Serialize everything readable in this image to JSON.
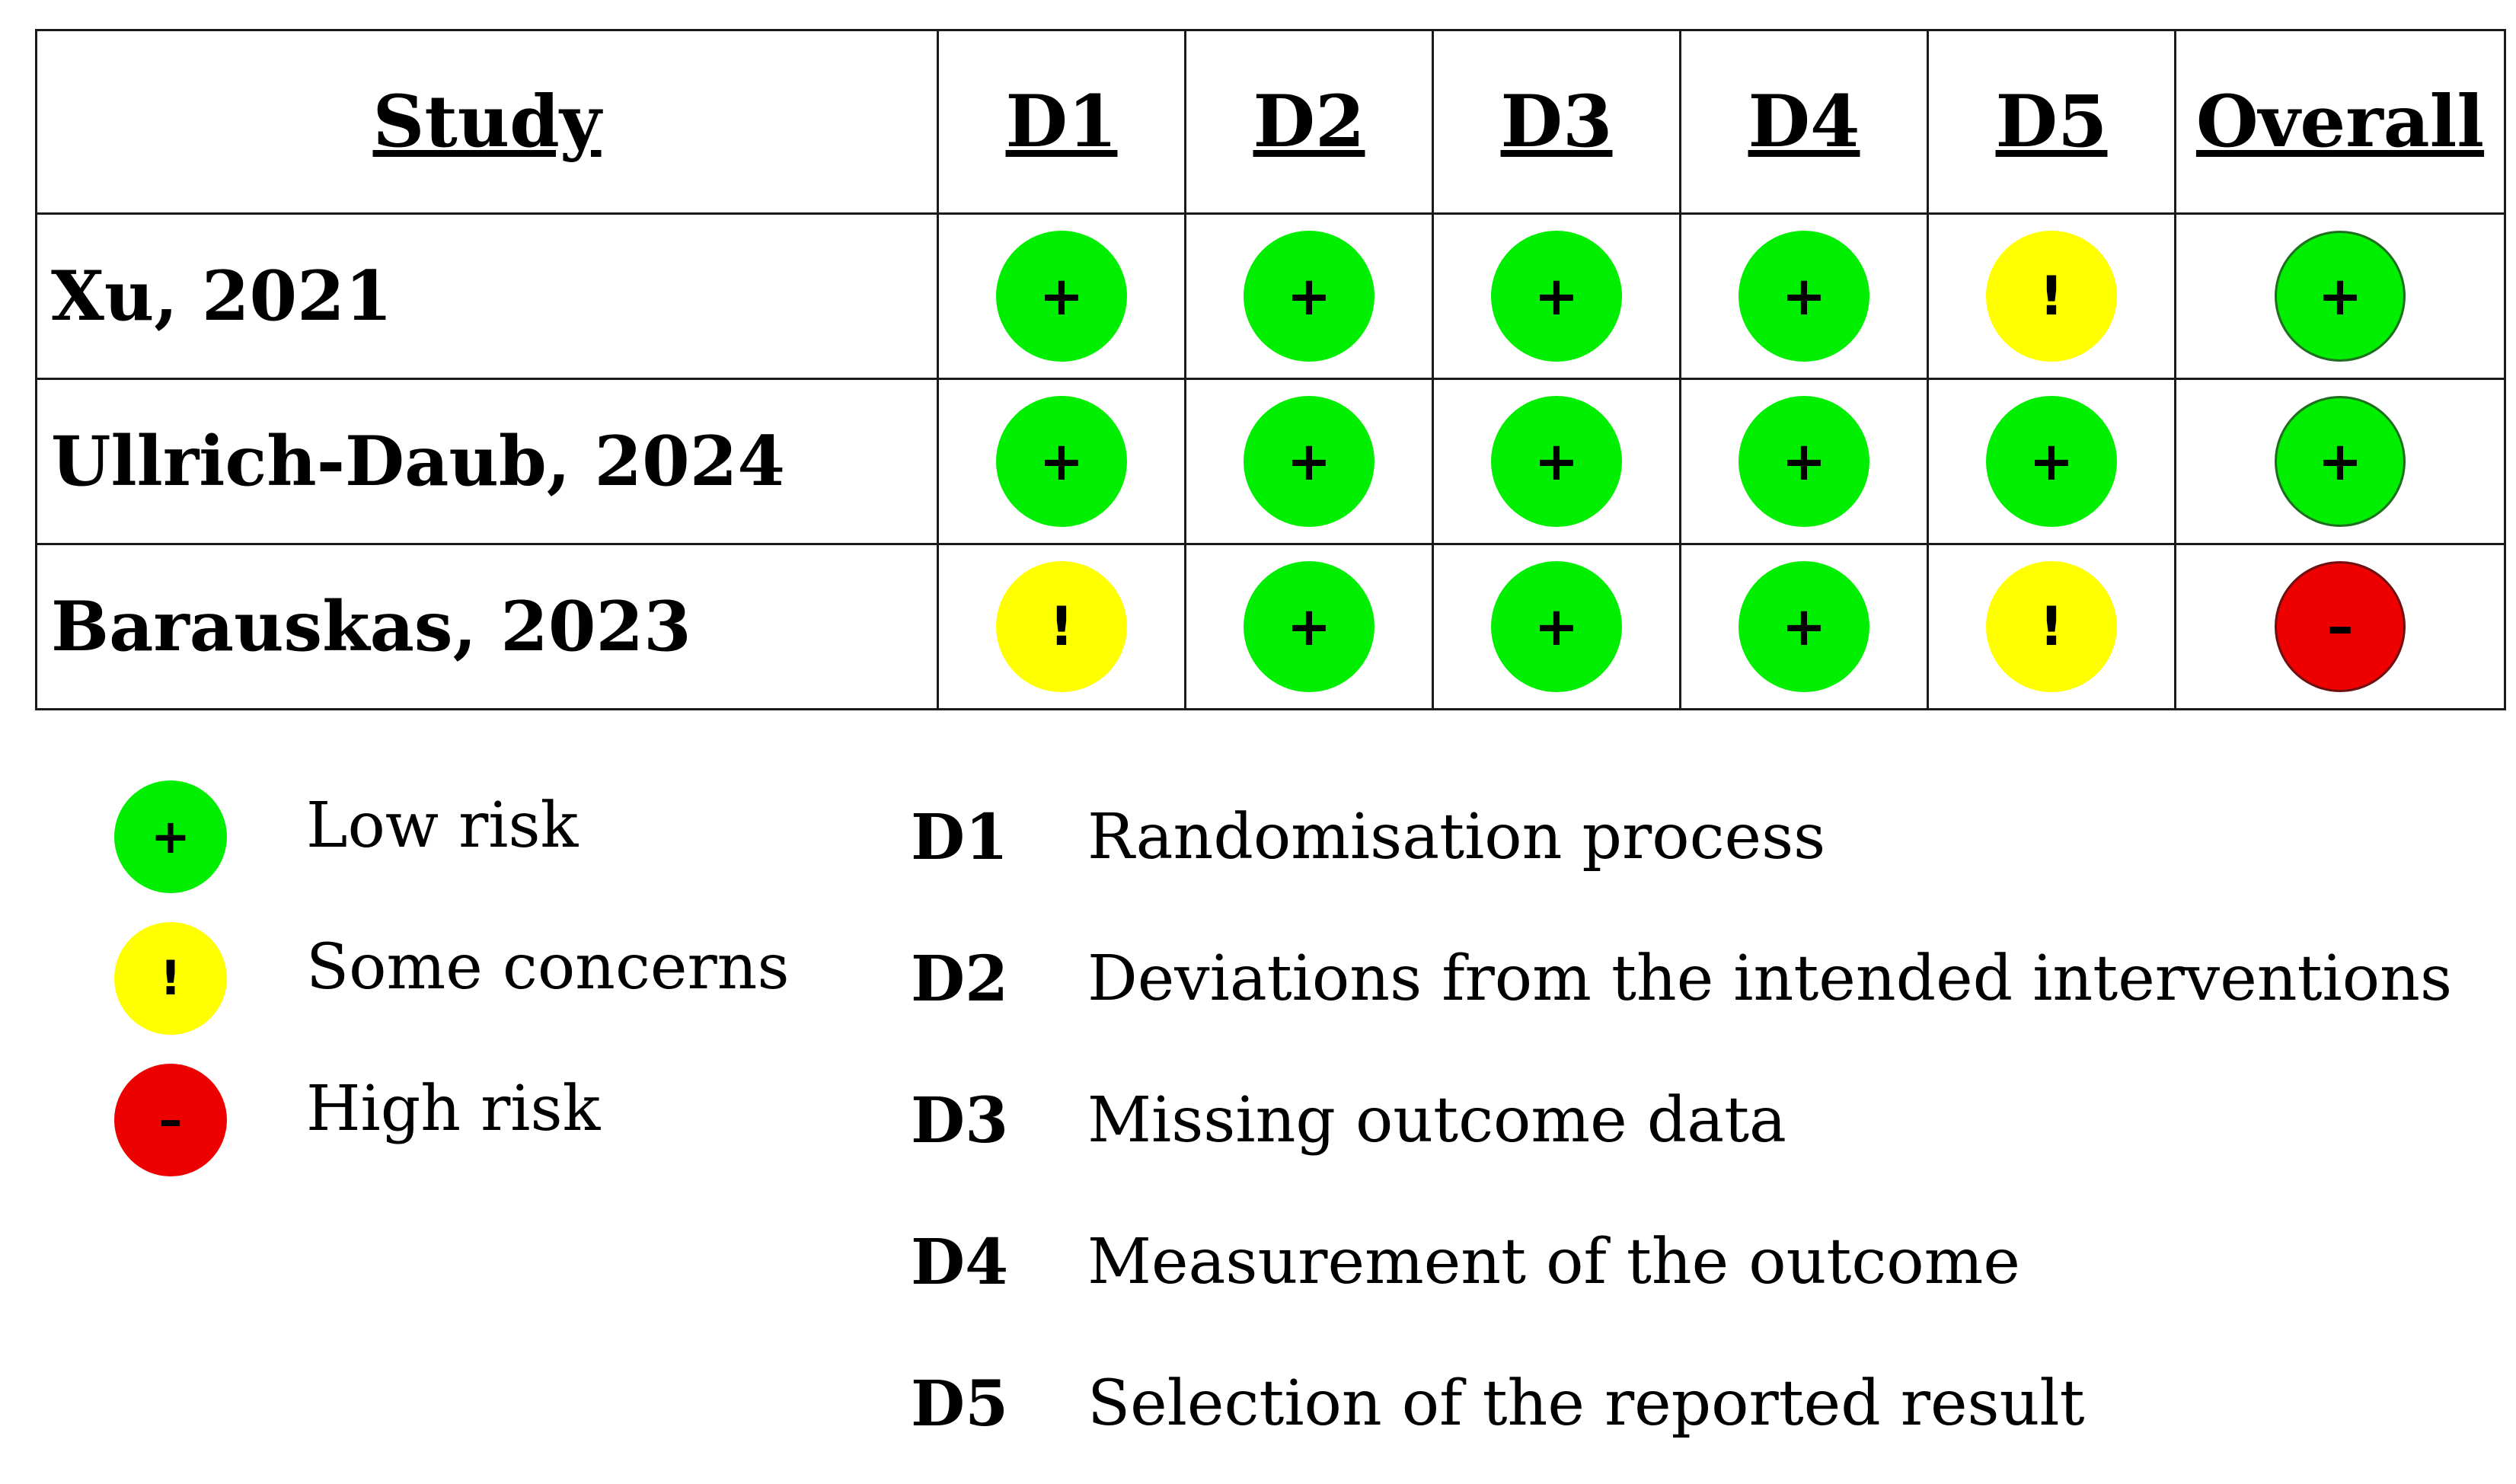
{
  "table": {
    "headers": [
      "Study",
      "D1",
      "D2",
      "D3",
      "D4",
      "D5",
      "Overall"
    ],
    "rows": [
      {
        "study": "Xu, 2021",
        "judgements": [
          "low",
          "low",
          "low",
          "low",
          "some",
          "low"
        ]
      },
      {
        "study": "Ullrich-Daub, 2024",
        "judgements": [
          "low",
          "low",
          "low",
          "low",
          "low",
          "low"
        ]
      },
      {
        "study": "Barauskas, 2023",
        "judgements": [
          "some",
          "low",
          "low",
          "low",
          "some",
          "high"
        ]
      }
    ]
  },
  "judgement_levels": {
    "low": {
      "symbol": "+",
      "label": "Low risk",
      "color": "#00ee00"
    },
    "some": {
      "symbol": "!",
      "label": "Some concerns",
      "color": "#ffff00"
    },
    "high": {
      "symbol": "–",
      "label": "High risk",
      "color": "#ee0000"
    }
  },
  "legend": {
    "judgements": [
      {
        "level": "low",
        "symbol": "+",
        "label": "Low risk"
      },
      {
        "level": "some",
        "symbol": "!",
        "label": "Some concerns"
      },
      {
        "level": "high",
        "symbol": "–",
        "label": "High risk"
      }
    ],
    "domains": [
      {
        "code": "D1",
        "description": "Randomisation process"
      },
      {
        "code": "D2",
        "description": "Deviations from the intended interventions"
      },
      {
        "code": "D3",
        "description": "Missing outcome data"
      },
      {
        "code": "D4",
        "description": "Measurement of the outcome"
      },
      {
        "code": "D5",
        "description": "Selection of the reported result"
      }
    ]
  }
}
